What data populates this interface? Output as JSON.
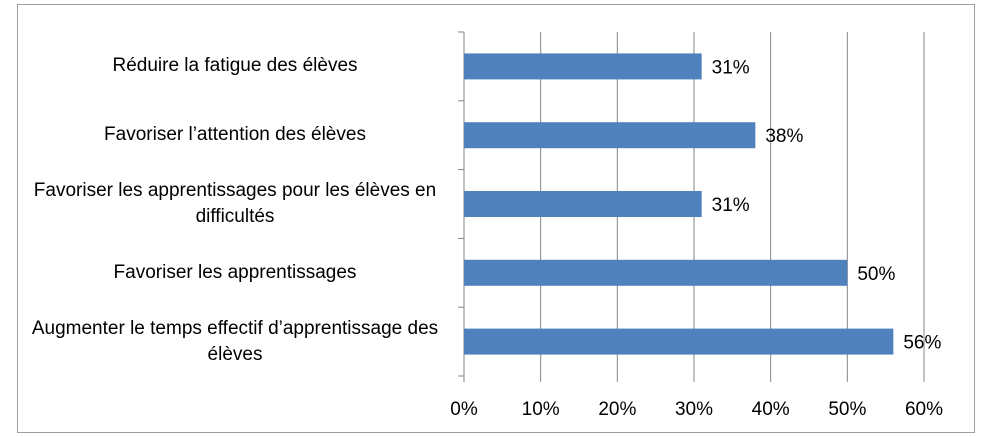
{
  "chart_data": {
    "type": "barh",
    "categories": [
      "Réduire la fatigue des élèves",
      "Favoriser l’attention des élèves",
      "Favoriser les apprentissages pour les élèves en difficultés",
      "Favoriser les apprentissages",
      "Augmenter le temps effectif d’apprentissage des élèves"
    ],
    "values": [
      31,
      38,
      31,
      50,
      56
    ],
    "value_labels": [
      "31%",
      "38%",
      "31%",
      "50%",
      "56%"
    ],
    "color": "#4f81bd",
    "xlim": [
      0,
      60
    ],
    "xticks": [
      {
        "value": 0,
        "label": "0%"
      },
      {
        "value": 10,
        "label": "10%"
      },
      {
        "value": 20,
        "label": "20%"
      },
      {
        "value": 30,
        "label": "30%"
      },
      {
        "value": 40,
        "label": "40%"
      },
      {
        "value": 50,
        "label": "50%"
      },
      {
        "value": 60,
        "label": "60%"
      }
    ],
    "grid": true
  }
}
